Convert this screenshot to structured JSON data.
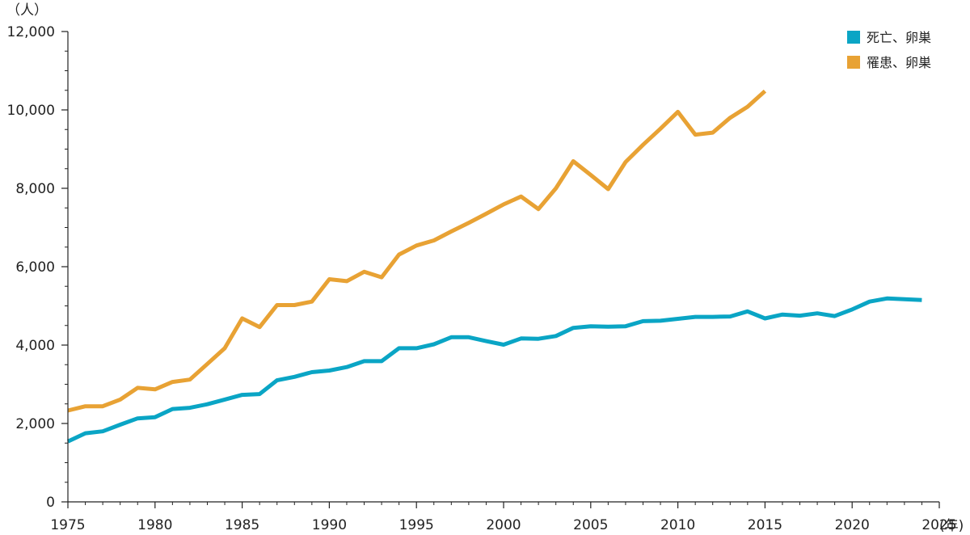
{
  "chart_data": {
    "type": "line",
    "y_unit_label": "（人）",
    "x_unit_label": "(年)",
    "xlim": [
      1975,
      2025
    ],
    "ylim": [
      0,
      12000
    ],
    "x_ticks": [
      1975,
      1980,
      1985,
      1990,
      1995,
      2000,
      2005,
      2010,
      2015,
      2020,
      2025
    ],
    "x_tick_labels": [
      "1975",
      "1980",
      "1985",
      "1990",
      "1995",
      "2000",
      "2005",
      "2010",
      "2015",
      "2020",
      "2025"
    ],
    "y_ticks": [
      0,
      2000,
      4000,
      6000,
      8000,
      10000,
      12000
    ],
    "y_tick_labels": [
      "0",
      "2,000",
      "4,000",
      "6,000",
      "8,000",
      "10,000",
      "12,000"
    ],
    "grid": false,
    "legend_position": "top-right",
    "series": [
      {
        "name": "死亡、卵巣",
        "color": "#0aa5c5",
        "x": [
          1975,
          1976,
          1977,
          1978,
          1979,
          1980,
          1981,
          1982,
          1983,
          1984,
          1985,
          1986,
          1987,
          1988,
          1989,
          1990,
          1991,
          1992,
          1993,
          1994,
          1995,
          1996,
          1997,
          1998,
          1999,
          2000,
          2001,
          2002,
          2003,
          2004,
          2005,
          2006,
          2007,
          2008,
          2009,
          2010,
          2011,
          2012,
          2013,
          2014,
          2015,
          2016,
          2017,
          2018,
          2019,
          2020,
          2021,
          2022,
          2023,
          2024
        ],
        "values": [
          1540,
          1750,
          1800,
          1970,
          2130,
          2160,
          2370,
          2400,
          2490,
          2610,
          2730,
          2750,
          3100,
          3190,
          3310,
          3350,
          3440,
          3590,
          3590,
          3920,
          3920,
          4020,
          4200,
          4200,
          4100,
          4010,
          4170,
          4160,
          4230,
          4440,
          4480,
          4470,
          4480,
          4610,
          4620,
          4670,
          4720,
          4720,
          4730,
          4860,
          4680,
          4780,
          4750,
          4810,
          4740,
          4910,
          5110,
          5190,
          5170,
          5150
        ]
      },
      {
        "name": "罹患、卵巣",
        "color": "#e8a234",
        "x": [
          1975,
          1976,
          1977,
          1978,
          1979,
          1980,
          1981,
          1982,
          1983,
          1984,
          1985,
          1986,
          1987,
          1988,
          1989,
          1990,
          1991,
          1992,
          1993,
          1994,
          1995,
          1996,
          1997,
          1998,
          1999,
          2000,
          2001,
          2002,
          2003,
          2004,
          2005,
          2006,
          2007,
          2008,
          2009,
          2010,
          2011,
          2012,
          2013,
          2014,
          2015
        ],
        "values": [
          2330,
          2440,
          2440,
          2610,
          2910,
          2870,
          3060,
          3120,
          3520,
          3920,
          4680,
          4460,
          5020,
          5020,
          5110,
          5680,
          5630,
          5870,
          5730,
          6310,
          6540,
          6670,
          6900,
          7120,
          7350,
          7590,
          7790,
          7470,
          8000,
          8690,
          8340,
          7980,
          8670,
          9110,
          9520,
          9950,
          9370,
          9420,
          9800,
          10080,
          10480
        ]
      }
    ]
  }
}
